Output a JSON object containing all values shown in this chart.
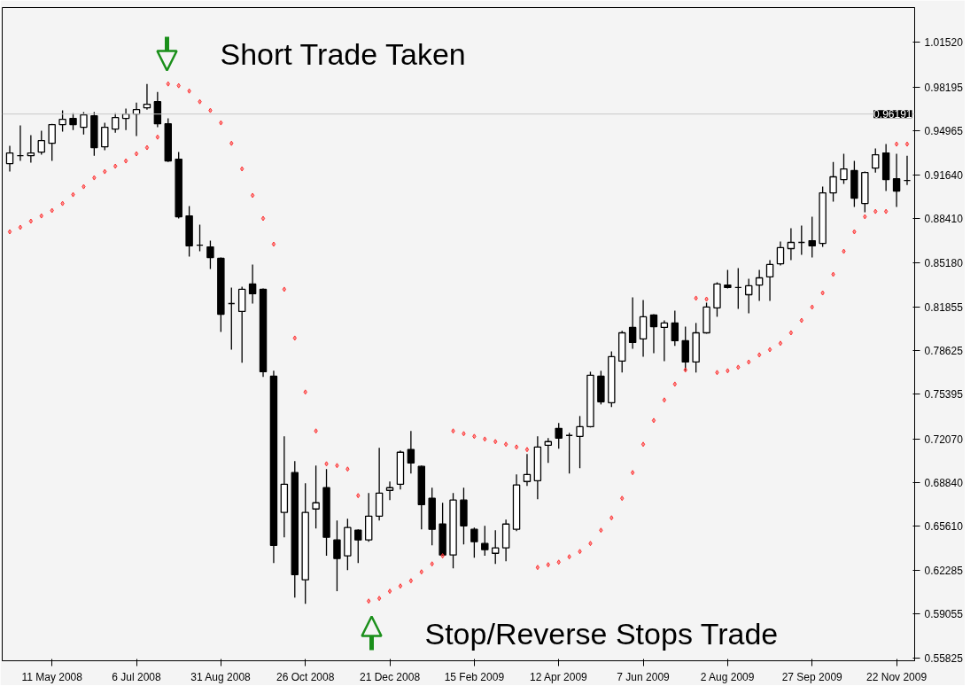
{
  "chart_data": {
    "type": "candlestick",
    "color": "#000000",
    "x": [
      "2008-04-13",
      "2008-04-20",
      "2008-04-27",
      "2008-05-04",
      "2008-05-11",
      "2008-05-18",
      "2008-05-25",
      "2008-06-01",
      "2008-06-08",
      "2008-06-15",
      "2008-06-22",
      "2008-06-29",
      "2008-07-06",
      "2008-07-13",
      "2008-07-20",
      "2008-07-27",
      "2008-08-03",
      "2008-08-10",
      "2008-08-17",
      "2008-08-24",
      "2008-08-31",
      "2008-09-07",
      "2008-09-14",
      "2008-09-21",
      "2008-09-28",
      "2008-10-05",
      "2008-10-12",
      "2008-10-19",
      "2008-10-26",
      "2008-11-02",
      "2008-11-09",
      "2008-11-16",
      "2008-11-23",
      "2008-11-30",
      "2008-12-07",
      "2008-12-14",
      "2008-12-21",
      "2008-12-28",
      "2009-01-04",
      "2009-01-11",
      "2009-01-18",
      "2009-01-25",
      "2009-02-01",
      "2009-02-08",
      "2009-02-15",
      "2009-02-22",
      "2009-03-01",
      "2009-03-08",
      "2009-03-15",
      "2009-03-22",
      "2009-03-29",
      "2009-04-05",
      "2009-04-12",
      "2009-04-19",
      "2009-04-26",
      "2009-05-03",
      "2009-05-10",
      "2009-05-17",
      "2009-05-24",
      "2009-05-31",
      "2009-06-07",
      "2009-06-14",
      "2009-06-21",
      "2009-06-28",
      "2009-07-05",
      "2009-07-12",
      "2009-07-19",
      "2009-07-26",
      "2009-08-02",
      "2009-08-09",
      "2009-08-16",
      "2009-08-23",
      "2009-08-30",
      "2009-09-06",
      "2009-09-13",
      "2009-09-20",
      "2009-09-27",
      "2009-10-04",
      "2009-10-11",
      "2009-10-18",
      "2009-10-25",
      "2009-11-01",
      "2009-11-08",
      "2009-11-15",
      "2009-11-22",
      "2009-11-29"
    ],
    "ohlc": [
      [
        0.9251,
        0.9383,
        0.9192,
        0.933
      ],
      [
        0.931,
        0.9534,
        0.9271,
        0.931
      ],
      [
        0.931,
        0.9462,
        0.9258,
        0.933
      ],
      [
        0.9337,
        0.9495,
        0.9317,
        0.9422
      ],
      [
        0.9402,
        0.9547,
        0.9271,
        0.9541
      ],
      [
        0.9541,
        0.9646,
        0.9488,
        0.958
      ],
      [
        0.9587,
        0.9626,
        0.9501,
        0.9541
      ],
      [
        0.9521,
        0.9633,
        0.9468,
        0.9613
      ],
      [
        0.9606,
        0.9633,
        0.931,
        0.937
      ],
      [
        0.9376,
        0.9554,
        0.935,
        0.9521
      ],
      [
        0.9508,
        0.9626,
        0.9481,
        0.9593
      ],
      [
        0.9587,
        0.9659,
        0.9501,
        0.9619
      ],
      [
        0.9619,
        0.9705,
        0.9455,
        0.9652
      ],
      [
        0.9665,
        0.9843,
        0.9652,
        0.9692
      ],
      [
        0.9711,
        0.9784,
        0.9521,
        0.9547
      ],
      [
        0.9547,
        0.9587,
        0.9264,
        0.9271
      ],
      [
        0.9284,
        0.9337,
        0.8844,
        0.8857
      ],
      [
        0.8863,
        0.8936,
        0.8561,
        0.864
      ],
      [
        0.8646,
        0.8798,
        0.86,
        0.8646
      ],
      [
        0.8633,
        0.8679,
        0.8469,
        0.8554
      ],
      [
        0.8548,
        0.8554,
        0.8002,
        0.8133
      ],
      [
        0.8212,
        0.8331,
        0.787,
        0.8212
      ],
      [
        0.8153,
        0.8337,
        0.7772,
        0.8318
      ],
      [
        0.8357,
        0.8502,
        0.8212,
        0.8285
      ],
      [
        0.8318,
        0.8324,
        0.7667,
        0.7706
      ],
      [
        0.7673,
        0.7713,
        0.6286,
        0.6417
      ],
      [
        0.6661,
        0.7226,
        0.6477,
        0.6871
      ],
      [
        0.6957,
        0.7042,
        0.6029,
        0.62
      ],
      [
        0.6161,
        0.6878,
        0.5983,
        0.6661
      ],
      [
        0.6687,
        0.7009,
        0.6542,
        0.6733
      ],
      [
        0.6845,
        0.6983,
        0.6339,
        0.6477
      ],
      [
        0.6457,
        0.6602,
        0.6076,
        0.6319
      ],
      [
        0.6339,
        0.6615,
        0.6233,
        0.6549
      ],
      [
        0.6529,
        0.6536,
        0.6286,
        0.6457
      ],
      [
        0.6457,
        0.6805,
        0.6444,
        0.6634
      ],
      [
        0.6634,
        0.7141,
        0.6602,
        0.6805
      ],
      [
        0.6825,
        0.6891,
        0.6753,
        0.6845
      ],
      [
        0.6871,
        0.7121,
        0.6832,
        0.7108
      ],
      [
        0.7128,
        0.7266,
        0.695,
        0.7029
      ],
      [
        0.7003,
        0.7009,
        0.6536,
        0.672
      ],
      [
        0.6766,
        0.6845,
        0.6417,
        0.6536
      ],
      [
        0.6575,
        0.6733,
        0.6339,
        0.6345
      ],
      [
        0.6345,
        0.6805,
        0.6246,
        0.6753
      ],
      [
        0.6753,
        0.6845,
        0.6424,
        0.6562
      ],
      [
        0.6536,
        0.6549,
        0.6325,
        0.6444
      ],
      [
        0.6431,
        0.6562,
        0.6339,
        0.6385
      ],
      [
        0.6358,
        0.6529,
        0.6279,
        0.6398
      ],
      [
        0.6398,
        0.6608,
        0.6299,
        0.6575
      ],
      [
        0.6536,
        0.6943,
        0.6523,
        0.6865
      ],
      [
        0.6891,
        0.7095,
        0.6858,
        0.6943
      ],
      [
        0.6897,
        0.7226,
        0.6759,
        0.7147
      ],
      [
        0.716,
        0.7213,
        0.7029,
        0.7187
      ],
      [
        0.7285,
        0.7325,
        0.7134,
        0.7213
      ],
      [
        0.7233,
        0.7252,
        0.695,
        0.7233
      ],
      [
        0.7226,
        0.7377,
        0.6989,
        0.7298
      ],
      [
        0.7298,
        0.7706,
        0.7292,
        0.768
      ],
      [
        0.7673,
        0.7713,
        0.7463,
        0.7483
      ],
      [
        0.7476,
        0.7857,
        0.7443,
        0.7818
      ],
      [
        0.7785,
        0.8009,
        0.77,
        0.7995
      ],
      [
        0.8035,
        0.8258,
        0.7877,
        0.7923
      ],
      [
        0.7949,
        0.8239,
        0.7818,
        0.8114
      ],
      [
        0.8127,
        0.8133,
        0.7844,
        0.8041
      ],
      [
        0.8035,
        0.8087,
        0.7785,
        0.8068
      ],
      [
        0.8068,
        0.816,
        0.7897,
        0.7936
      ],
      [
        0.7936,
        0.8041,
        0.7713,
        0.7778
      ],
      [
        0.7778,
        0.8068,
        0.77,
        0.7995
      ],
      [
        0.7995,
        0.8219,
        0.7989,
        0.8186
      ],
      [
        0.818,
        0.837,
        0.8114,
        0.8357
      ],
      [
        0.835,
        0.8462,
        0.8324,
        0.8331
      ],
      [
        0.8331,
        0.8475,
        0.8173,
        0.8331
      ],
      [
        0.8278,
        0.8396,
        0.814,
        0.8344
      ],
      [
        0.835,
        0.8462,
        0.8232,
        0.8403
      ],
      [
        0.841,
        0.8535,
        0.8232,
        0.8502
      ],
      [
        0.8508,
        0.8673,
        0.8495,
        0.8627
      ],
      [
        0.862,
        0.8771,
        0.8535,
        0.8666
      ],
      [
        0.8666,
        0.8791,
        0.8574,
        0.8666
      ],
      [
        0.8679,
        0.8857,
        0.8554,
        0.864
      ],
      [
        0.8659,
        0.908,
        0.8633,
        0.9034
      ],
      [
        0.9034,
        0.9264,
        0.8969,
        0.9153
      ],
      [
        0.9133,
        0.9324,
        0.91,
        0.9212
      ],
      [
        0.9199,
        0.9271,
        0.8929,
        0.8995
      ],
      [
        0.8955,
        0.9192,
        0.889,
        0.9185
      ],
      [
        0.9218,
        0.9363,
        0.9185,
        0.9317
      ],
      [
        0.933,
        0.9396,
        0.9047,
        0.9133
      ],
      [
        0.9139,
        0.9324,
        0.8929,
        0.9047
      ],
      [
        0.9126,
        0.931,
        0.9093,
        0.9126
      ]
    ],
    "series": [
      {
        "type": "scatter",
        "color": "#ff3030",
        "marker": "diamond",
        "values": [
          0.8745,
          0.8778,
          0.8824,
          0.8863,
          0.8903,
          0.8955,
          0.9021,
          0.908,
          0.9146,
          0.9192,
          0.9232,
          0.9271,
          0.9324,
          0.937,
          0.9448,
          0.9843,
          0.983,
          0.979,
          0.9711,
          0.9646,
          0.9554,
          0.9402,
          0.9212,
          0.9015,
          0.8844,
          0.8653,
          0.8318,
          0.7956,
          0.7555,
          0.7266,
          0.7022,
          0.7009,
          0.6983,
          0.6786,
          0.6003,
          0.6023,
          0.6076,
          0.6115,
          0.6154,
          0.622,
          0.6279,
          0.6339,
          0.7266,
          0.7246,
          0.7226,
          0.7206,
          0.7187,
          0.7167,
          0.7147,
          0.7128,
          0.6253,
          0.6273,
          0.6292,
          0.6332,
          0.6371,
          0.6431,
          0.6529,
          0.6621,
          0.6766,
          0.6957,
          0.7167,
          0.7344,
          0.7496,
          0.7614,
          0.7719,
          0.8252,
          0.8245,
          0.77,
          0.7713,
          0.7739,
          0.7778,
          0.7831,
          0.787,
          0.7917,
          0.7995,
          0.8087,
          0.8186,
          0.8291,
          0.8429,
          0.86,
          0.8745,
          0.8857,
          0.8896,
          0.8896,
          0.9396,
          0.9396
        ]
      }
    ],
    "xlim": [
      "2008-04-08",
      "2009-12-04"
    ],
    "xticks": [
      {
        "value": "2008-05-11",
        "label": "11 May 2008"
      },
      {
        "value": "2008-07-06",
        "label": "6 Jul 2008"
      },
      {
        "value": "2008-08-31",
        "label": "31 Aug 2008"
      },
      {
        "value": "2008-10-26",
        "label": "26 Oct 2008"
      },
      {
        "value": "2008-12-21",
        "label": "21 Dec 2008"
      },
      {
        "value": "2009-02-15",
        "label": "15 Feb 2009"
      },
      {
        "value": "2009-04-12",
        "label": "12 Apr 2009"
      },
      {
        "value": "2009-06-07",
        "label": "7 Jun 2009"
      },
      {
        "value": "2009-08-02",
        "label": "2 Aug 2009"
      },
      {
        "value": "2009-09-27",
        "label": "27 Sep 2009"
      },
      {
        "value": "2009-11-22",
        "label": "22 Nov 2009"
      }
    ],
    "ylim": [
      0.556,
      1.041
    ],
    "yticks": [
      {
        "value": 1.0152,
        "label": "1.01520"
      },
      0.98195,
      0.94965,
      {
        "value": 0.9164,
        "label": "0.91640"
      },
      {
        "value": 0.8841,
        "label": "0.88410"
      },
      {
        "value": 0.8518,
        "label": "0.85180"
      },
      0.81855,
      0.78625,
      0.75395,
      {
        "value": 0.7207,
        "label": "0.72070"
      },
      {
        "value": 0.6884,
        "label": "0.68840"
      },
      {
        "value": 0.6561,
        "label": "0.65610"
      },
      0.62285,
      0.59055,
      0.55825
    ],
    "ref_lines": [
      {
        "axis": "y",
        "value": 0.96191,
        "label": "0.96191",
        "color": "#c8c8c8"
      }
    ],
    "annotations": [
      "Short Trade Taken",
      "Stop/Reverse Stops Trade"
    ]
  }
}
